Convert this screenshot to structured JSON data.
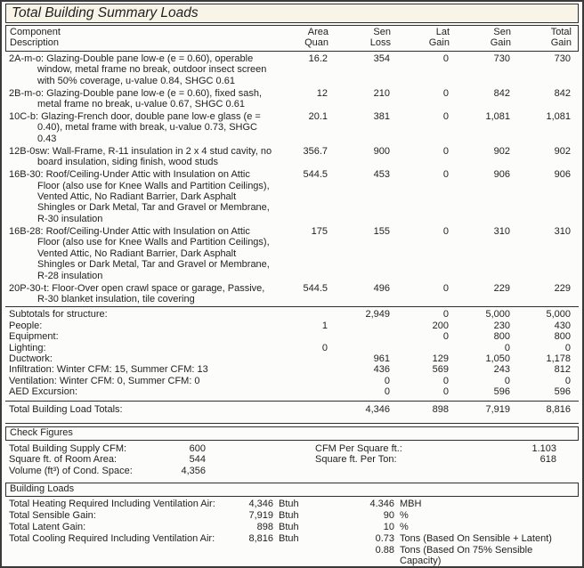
{
  "title": "Total Building Summary Loads",
  "colors": {
    "text": "#1f1f1f",
    "border": "#2e2e2e",
    "page_background": "#fcfcfa",
    "title_background": "#f8f4e8"
  },
  "table": {
    "header": {
      "col1_line1": "Component",
      "col1_line2": "Description",
      "cols_line1": [
        "Area",
        "Sen",
        "Lat",
        "Sen",
        "Total"
      ],
      "cols_line2": [
        "Quan",
        "Loss",
        "Gain",
        "Gain",
        "Gain"
      ]
    },
    "rows": [
      {
        "desc": "2A-m-o: Glazing-Double pane low-e (e = 0.60), operable window, metal frame no break, outdoor insect screen with 50% coverage, u-value 0.84, SHGC 0.61",
        "values": [
          "16.2",
          "354",
          "0",
          "730",
          "730"
        ]
      },
      {
        "desc": "2B-m-o: Glazing-Double pane low-e (e = 0.60), fixed sash, metal frame no break, u-value 0.67, SHGC 0.61",
        "values": [
          "12",
          "210",
          "0",
          "842",
          "842"
        ]
      },
      {
        "desc": "10C-b: Glazing-French door, double pane low-e glass (e = 0.40), metal frame with break, u-value 0.73, SHGC 0.43",
        "values": [
          "20.1",
          "381",
          "0",
          "1,081",
          "1,081"
        ]
      },
      {
        "desc": "12B-0sw: Wall-Frame, R-11 insulation in 2 x 4 stud cavity, no board insulation, siding finish, wood studs",
        "values": [
          "356.7",
          "900",
          "0",
          "902",
          "902"
        ]
      },
      {
        "desc": "16B-30: Roof/Ceiling-Under Attic with Insulation on Attic Floor (also use for Knee Walls and Partition Ceilings), Vented Attic, No Radiant Barrier, Dark Asphalt Shingles or Dark Metal, Tar and Gravel or Membrane, R-30 insulation",
        "values": [
          "544.5",
          "453",
          "0",
          "906",
          "906"
        ]
      },
      {
        "desc": "16B-28: Roof/Ceiling-Under Attic with Insulation on Attic Floor (also use for Knee Walls and Partition Ceilings), Vented Attic, No Radiant Barrier, Dark Asphalt Shingles or Dark Metal, Tar and Gravel or Membrane, R-28 insulation",
        "values": [
          "175",
          "155",
          "0",
          "310",
          "310"
        ]
      },
      {
        "desc": "20P-30-t: Floor-Over open crawl space or garage, Passive, R-30 blanket insulation, tile covering",
        "values": [
          "544.5",
          "496",
          "0",
          "229",
          "229"
        ]
      }
    ],
    "subtotal_rows": [
      {
        "label": "Subtotals for structure:",
        "values": [
          "",
          "2,949",
          "0",
          "5,000",
          "5,000"
        ]
      },
      {
        "label": "People:",
        "values": [
          "1",
          "",
          "200",
          "230",
          "430"
        ]
      },
      {
        "label": "Equipment:",
        "values": [
          "",
          "",
          "0",
          "800",
          "800"
        ]
      },
      {
        "label": "Lighting:",
        "values": [
          "0",
          "",
          "",
          "0",
          "0"
        ]
      },
      {
        "label": "Ductwork:",
        "values": [
          "",
          "961",
          "129",
          "1,050",
          "1,178"
        ]
      },
      {
        "label": "Infiltration: Winter CFM: 15, Summer CFM: 13",
        "values": [
          "",
          "436",
          "569",
          "243",
          "812"
        ]
      },
      {
        "label": "Ventilation: Winter CFM: 0, Summer CFM: 0",
        "values": [
          "",
          "0",
          "0",
          "0",
          "0"
        ]
      },
      {
        "label": "AED Excursion:",
        "values": [
          "",
          "0",
          "0",
          "596",
          "596"
        ]
      }
    ],
    "totals": {
      "label": "Total Building Load Totals:",
      "values": [
        "",
        "4,346",
        "898",
        "7,919",
        "8,816"
      ]
    }
  },
  "check_figures": {
    "section_title": "Check Figures",
    "rows": [
      {
        "left_label": "Total Building Supply CFM:",
        "left_value": "600",
        "right_label": "CFM Per Square ft.:",
        "right_value": "1.103"
      },
      {
        "left_label": "Square ft. of Room Area:",
        "left_value": "544",
        "right_label": "Square ft. Per Ton:",
        "right_value": "618"
      },
      {
        "left_label": "Volume (ft³) of Cond. Space:",
        "left_value": "4,356",
        "right_label": "",
        "right_value": ""
      }
    ]
  },
  "building_loads": {
    "section_title": "Building Loads",
    "rows": [
      {
        "label": "Total Heating Required Including Ventilation Air:",
        "value1": "4,346",
        "unit1": "Btuh",
        "value2": "4.346",
        "unit2": "MBH"
      },
      {
        "label": "Total Sensible Gain:",
        "value1": "7,919",
        "unit1": "Btuh",
        "value2": "90",
        "unit2": "%"
      },
      {
        "label": "Total Latent Gain:",
        "value1": "898",
        "unit1": "Btuh",
        "value2": "10",
        "unit2": "%"
      },
      {
        "label": "Total Cooling Required Including Ventilation Air:",
        "value1": "8,816",
        "unit1": "Btuh",
        "value2": "0.73",
        "unit2": "Tons (Based On Sensible + Latent)"
      },
      {
        "label": "",
        "value1": "",
        "unit1": "",
        "value2": "0.88",
        "unit2": "Tons (Based On 75% Sensible Capacity)"
      }
    ]
  }
}
